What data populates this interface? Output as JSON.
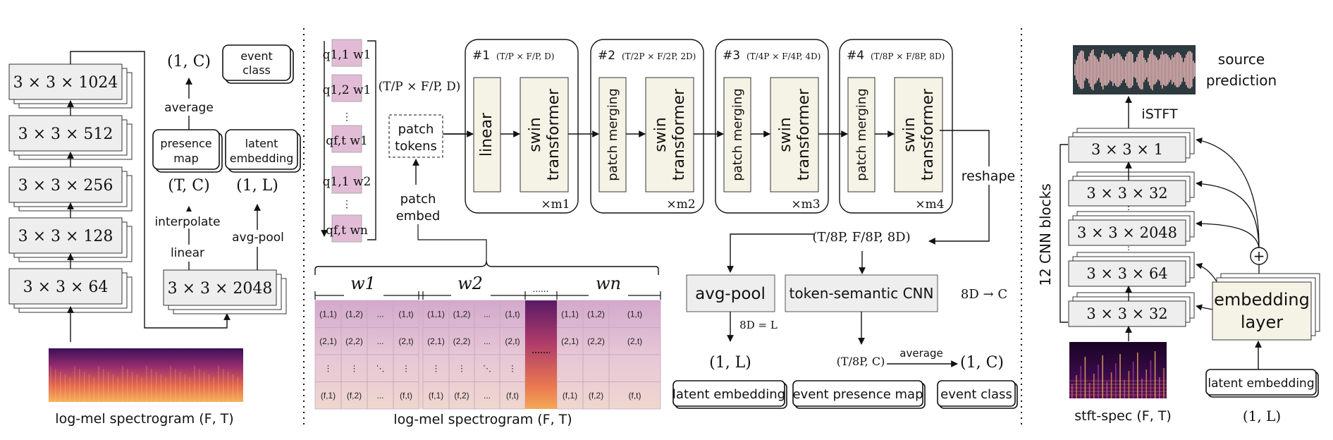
{
  "left_panel": {
    "conv_blocks": [
      "3 × 3 × 1024",
      "3 × 3 × 512",
      "3 × 3 × 256",
      "3 × 3 × 128",
      "3 × 3 × 64"
    ],
    "output_dim": "(1, C)",
    "event_class_line1": "event",
    "event_class_line2": "class",
    "average_label": "average",
    "presence_map_line1": "presence",
    "presence_map_line2": "map",
    "latent_embedding_line1": "latent",
    "latent_embedding_line2": "embedding",
    "presence_dim": "(T, C)",
    "latent_dim": "(1, L)",
    "interpolate_label": "interpolate",
    "linear_label": "linear",
    "avgpool_label": "avg-pool",
    "last_block": "3 × 3 × 2048",
    "spectrogram_caption": "log-mel spectrogram (F, T)"
  },
  "middle_panel": {
    "patch_tokens_line1": "patch",
    "patch_tokens_line2": "tokens",
    "patch_embed_line1": "patch",
    "patch_embed_line2": "embed",
    "input_dim": "(T/P × F/P, D)",
    "stages": [
      {
        "id": "#1",
        "dim": "(T/P × F/P, D)",
        "block_a": "linear",
        "block_b_line1": "swin",
        "block_b_line2": "transformer",
        "repeat": "×m1"
      },
      {
        "id": "#2",
        "dim": "(T/2P × F/2P, 2D)",
        "block_a": "patch merging",
        "block_b_line1": "swin",
        "block_b_line2": "transformer",
        "repeat": "×m2"
      },
      {
        "id": "#3",
        "dim": "(T/4P × F/4P, 4D)",
        "block_a": "patch merging",
        "block_b_line1": "swin",
        "block_b_line2": "transformer",
        "repeat": "×m3"
      },
      {
        "id": "#4",
        "dim": "(T/8P × F/8P, 8D)",
        "block_a": "patch merging",
        "block_b_line1": "swin",
        "block_b_line2": "transformer",
        "repeat": "×m4"
      }
    ],
    "reshape_label": "reshape",
    "reshape_dim": "(T/8P, F/8P, 8D)",
    "avgpool_label": "avg-pool",
    "tscnn_label": "token-semantic CNN",
    "tscnn_dim": "8D → C",
    "eq_label": "8D = L",
    "latent_dim": "(1, L)",
    "presence_dim": "(T/8P, C)",
    "average_label": "average",
    "class_dim": "(1, C)",
    "out_latent": "latent embedding",
    "out_presence": "event presence map",
    "out_class": "event class",
    "windows": [
      "w1",
      "w2",
      "......",
      "wn"
    ],
    "grid_rows": [
      [
        "(1,1)",
        "(1,2)",
        "...",
        "(1,t)"
      ],
      [
        "(2,1)",
        "(2,2)",
        "...",
        "(2,t)"
      ],
      [
        "⋮",
        "⋮",
        "⋱",
        "⋮"
      ],
      [
        "(f,1)",
        "(f,2)",
        "...",
        "(f,t)"
      ]
    ],
    "grid_rows_last": [
      [
        "(1,1)",
        "(1,2)",
        "(1,t)"
      ],
      [
        "(2,1)",
        "(2,2)",
        "(2,t)"
      ],
      [
        "",
        "",
        ""
      ],
      [
        "(f,1)",
        "(f,2)",
        "(f,t)"
      ]
    ],
    "spectrogram_caption": "log-mel spectrogram (F, T)",
    "query_tokens": [
      "q1,1 w1",
      "q1,2 w1",
      "⋮",
      "qf,t w1",
      "q1,1 w2",
      "⋮",
      "qf,t wn"
    ]
  },
  "right_panel": {
    "source_line1": "source",
    "source_line2": "prediction",
    "istft_label": "iSTFT",
    "cnn_label": "12 CNN blocks",
    "cnn_blocks": [
      "3 × 3 × 1",
      "3 × 3 × 32",
      "⋮",
      "3 × 3 × 2048",
      "⋮",
      "3 × 3 × 64",
      "3 × 3 × 32"
    ],
    "plus_label": "+",
    "embedding_line1": "embedding",
    "embedding_line2": "layer",
    "latent_embedding": "latent embedding",
    "latent_dim": "(1, L)",
    "spec_caption": "stft-spec (F, T)"
  },
  "colors": {
    "block_fill": "#eeeeee",
    "stage_fill": "#f5f3e6",
    "token_fill": "#e2bcd6",
    "spectrogram_dark": "#2a0a3c",
    "spectrogram_hot": "#f29a55"
  }
}
